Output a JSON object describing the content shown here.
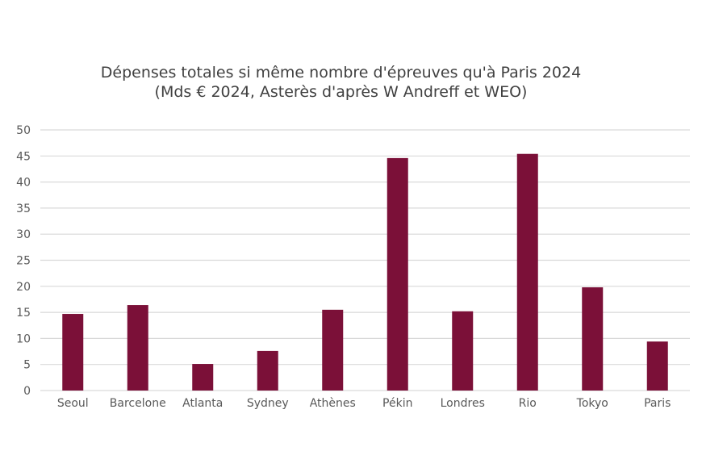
{
  "chart_data": {
    "type": "bar",
    "title": "Dépenses totales si même nombre d'épreuves qu'à Paris 2024",
    "subtitle": "(Mds € 2024, Asterès d'après W Andreff et WEO)",
    "categories": [
      "Seoul",
      "Barcelone",
      "Atlanta",
      "Sydney",
      "Athènes",
      "Pékin",
      "Londres",
      "Rio",
      "Tokyo",
      "Paris"
    ],
    "values": [
      14.7,
      16.4,
      5.1,
      7.6,
      15.5,
      44.6,
      15.2,
      45.4,
      19.8,
      9.4
    ],
    "ylim": [
      0,
      50
    ],
    "yticks": [
      "0",
      "5",
      "10",
      "15",
      "20",
      "25",
      "30",
      "35",
      "40",
      "45",
      "50"
    ],
    "grid": true,
    "legend": "none",
    "bar_color": "#7b1038",
    "grid_color": "#d9d9d9"
  }
}
